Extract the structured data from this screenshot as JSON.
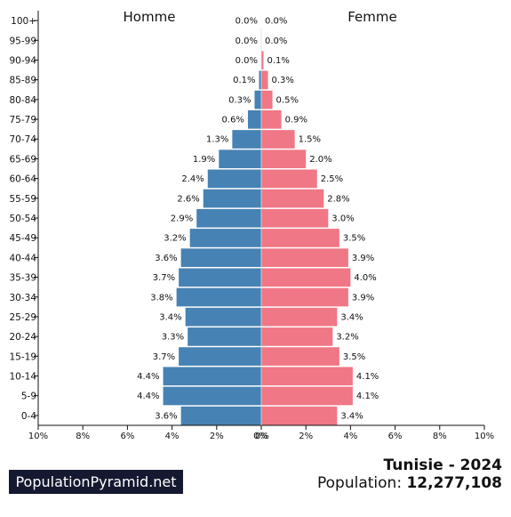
{
  "brand": "PopulationPyramid.net",
  "country_year": "Tunisie - 2024",
  "population_label": "Population:",
  "population_value": "12,277,108",
  "colors": {
    "male": "#4682b4",
    "female": "#f07785",
    "axis": "#111111",
    "brand_bg": "#141830"
  },
  "chart_data": {
    "type": "bar",
    "orientation": "horizontal-pyramid",
    "categories": [
      "100+",
      "95-99",
      "90-94",
      "85-89",
      "80-84",
      "75-79",
      "70-74",
      "65-69",
      "60-64",
      "55-59",
      "50-54",
      "45-49",
      "40-44",
      "35-39",
      "30-34",
      "25-29",
      "20-24",
      "15-19",
      "10-14",
      "5-9",
      "0-4"
    ],
    "series": [
      {
        "name": "Homme",
        "values": [
          0.0,
          0.0,
          0.0,
          0.1,
          0.3,
          0.6,
          1.3,
          1.9,
          2.4,
          2.6,
          2.9,
          3.2,
          3.6,
          3.7,
          3.8,
          3.4,
          3.3,
          3.7,
          4.4,
          4.4,
          3.6
        ]
      },
      {
        "name": "Femme",
        "values": [
          0.0,
          0.0,
          0.1,
          0.3,
          0.5,
          0.9,
          1.5,
          2.0,
          2.5,
          2.8,
          3.0,
          3.5,
          3.9,
          4.0,
          3.9,
          3.4,
          3.2,
          3.5,
          4.1,
          4.1,
          3.4
        ]
      }
    ],
    "xlim": [
      -10,
      10
    ],
    "x_ticks": [
      "10%",
      "8%",
      "6%",
      "4%",
      "2%",
      "0%",
      "0%",
      "2%",
      "4%",
      "6%",
      "8%",
      "10%"
    ],
    "grid": false
  }
}
